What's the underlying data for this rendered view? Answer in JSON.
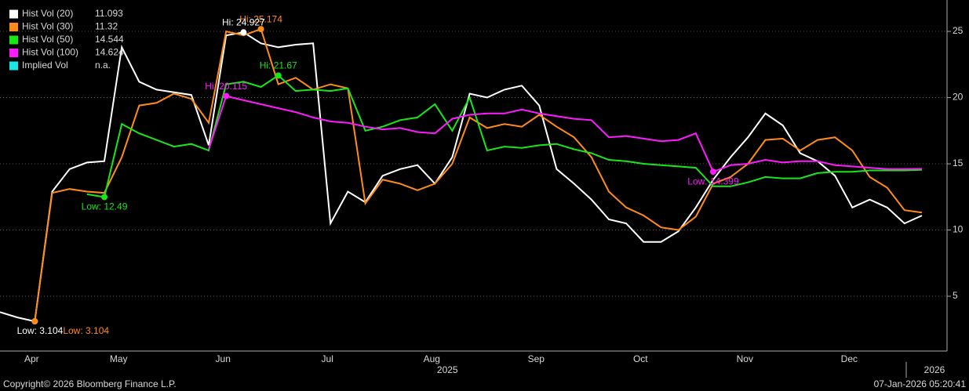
{
  "chart_data": {
    "type": "line",
    "categories": [
      null,
      null,
      "Apr",
      null,
      null,
      null,
      null,
      "May",
      null,
      null,
      null,
      null,
      null,
      "Jun",
      null,
      null,
      null,
      null,
      null,
      "Jul",
      null,
      null,
      null,
      null,
      null,
      "Aug",
      null,
      null,
      null,
      null,
      null,
      "Sep",
      null,
      null,
      null,
      null,
      null,
      "Oct",
      null,
      null,
      null,
      null,
      null,
      "Nov",
      null,
      null,
      null,
      null,
      null,
      "Dec",
      null,
      null,
      null,
      null
    ],
    "year_categories": [
      null,
      null,
      null,
      null,
      null,
      null,
      null,
      null,
      null,
      null,
      null,
      null,
      null,
      null,
      null,
      null,
      null,
      null,
      null,
      null,
      null,
      null,
      null,
      null,
      null,
      "2025",
      null,
      null,
      null,
      null,
      null,
      null,
      null,
      null,
      null,
      null,
      null,
      null,
      null,
      null,
      null,
      null,
      null,
      null,
      null,
      null,
      null,
      null,
      null,
      null,
      null,
      null,
      null,
      "2026"
    ],
    "series": [
      {
        "name": "Hist Vol (20)",
        "color": "#ffffff",
        "last": 11.093,
        "values": [
          3.8,
          3.4,
          3.104,
          12.9,
          14.6,
          15.1,
          15.2,
          23.8,
          21.2,
          20.6,
          20.4,
          20.2,
          16.4,
          24.7,
          24.927,
          24.1,
          23.8,
          24,
          24.1,
          10.5,
          12.9,
          12.1,
          14.1,
          14.6,
          14.9,
          13.5,
          15.5,
          20.3,
          20,
          20.6,
          20.9,
          19.4,
          14.6,
          13.5,
          12.3,
          10.8,
          10.5,
          9.1,
          9.1,
          9.9,
          11.7,
          13.8,
          15.5,
          17,
          18.8,
          17.9,
          15.8,
          15.2,
          14.1,
          11.7,
          12.3,
          11.7,
          10.5,
          11.093
        ]
      },
      {
        "name": "Hist Vol (30)",
        "color": "#ff8c1a",
        "last": 11.32,
        "values": [
          null,
          null,
          3.104,
          12.8,
          13.1,
          12.9,
          12.8,
          15.5,
          19.4,
          19.6,
          20.3,
          19.9,
          18.1,
          25,
          24.7,
          25.174,
          21,
          21.5,
          20.6,
          21,
          20.7,
          12,
          13.8,
          13.5,
          13,
          13.5,
          15,
          18.5,
          17.7,
          18,
          17.8,
          18.7,
          17.8,
          17,
          15.5,
          12.9,
          11.7,
          11.1,
          10.2,
          10,
          11,
          13.5,
          14,
          15,
          16.8,
          16.9,
          16,
          16.8,
          17,
          16,
          14,
          13.2,
          11.5,
          11.32
        ]
      },
      {
        "name": "Hist Vol (50)",
        "color": "#19e619",
        "last": 14.544,
        "values": [
          null,
          null,
          null,
          null,
          null,
          12.7,
          12.49,
          18,
          17.3,
          16.8,
          16.3,
          16.5,
          16,
          21,
          21.2,
          20.8,
          21.67,
          20.5,
          20.6,
          20.5,
          20.7,
          17.5,
          17.8,
          18.3,
          18.5,
          19.5,
          17.5,
          20,
          16,
          16.3,
          16.2,
          16.4,
          16.5,
          16.1,
          15.8,
          15.3,
          15.2,
          15,
          14.9,
          14.8,
          14.7,
          13.3,
          13.3,
          13.6,
          14,
          13.9,
          13.9,
          14.3,
          14.4,
          14.4,
          14.5,
          14.5,
          14.5,
          14.544
        ]
      },
      {
        "name": "Hist Vol (100)",
        "color": "#ff1aff",
        "last": 14.624,
        "values": [
          null,
          null,
          null,
          null,
          null,
          null,
          null,
          null,
          null,
          null,
          null,
          null,
          16.1,
          20.115,
          19.8,
          19.5,
          19.2,
          18.9,
          18.5,
          18.2,
          18.1,
          17.8,
          17.6,
          17.7,
          17.4,
          17.3,
          18.4,
          18.7,
          18.8,
          18.8,
          19.1,
          18.8,
          18.6,
          18.4,
          18.3,
          17,
          17.1,
          16.9,
          16.7,
          16.8,
          17.3,
          14.399,
          14.9,
          15,
          15.3,
          15.1,
          15.2,
          15.2,
          14.9,
          14.8,
          14.7,
          14.6,
          14.6,
          14.624
        ]
      },
      {
        "name": "Implied Vol",
        "color": "#1ae6e6",
        "last": "n.a."
      }
    ],
    "annotations": [
      {
        "label": "Low: 3.104",
        "value": 3.104,
        "color": "#ffffff"
      },
      {
        "label": "Low: 3.104",
        "value": 3.104,
        "color": "#ff8c1a"
      },
      {
        "label": "Hi: 25.174",
        "value": 25.174,
        "color": "#ff8c1a"
      },
      {
        "label": "Hi: 24.927",
        "value": 24.927,
        "color": "#ffffff"
      },
      {
        "label": "Low: 12.49",
        "value": 12.49,
        "color": "#19e619"
      },
      {
        "label": "Hi: 21.67",
        "value": 21.67,
        "color": "#19e619"
      },
      {
        "label": "Hi: 20.115",
        "value": 20.115,
        "color": "#ff1aff"
      },
      {
        "label": "Low: 14.399",
        "value": 14.399,
        "color": "#ff1aff"
      }
    ],
    "ylim": [
      0.86,
      27.37
    ],
    "yticks": [
      5,
      10,
      15,
      20,
      25
    ],
    "grid": true,
    "footer": {
      "copyright": "Copyright© 2026 Bloomberg Finance L.P.",
      "timestamp": "07-Jan-2026 05:20:41"
    }
  }
}
